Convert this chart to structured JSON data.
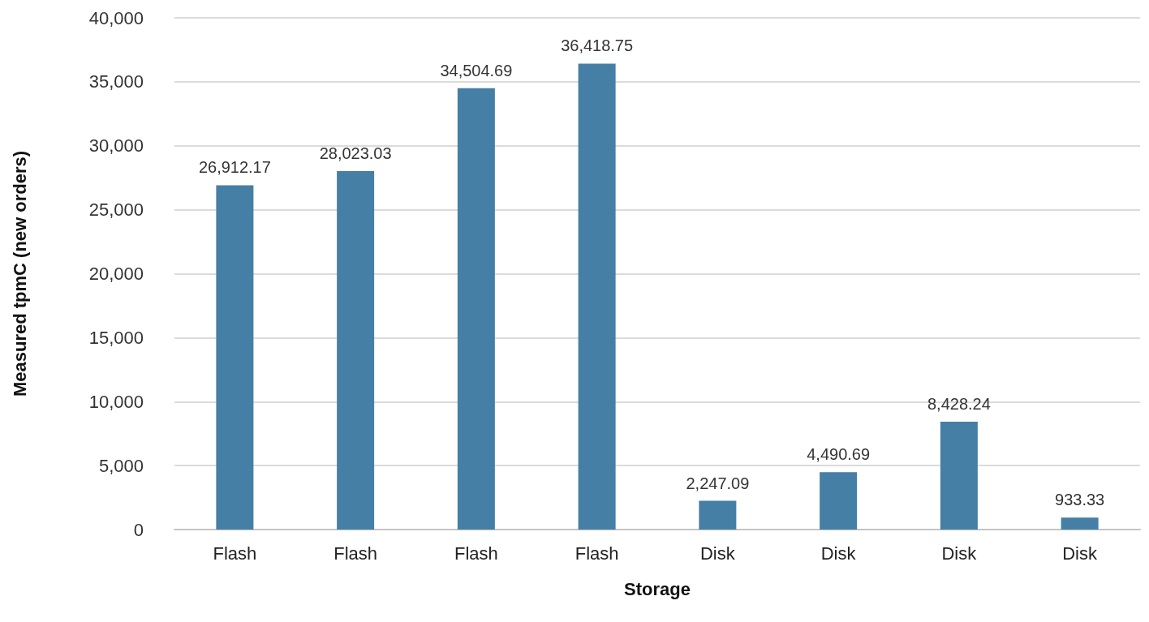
{
  "chart_data": {
    "type": "bar",
    "xlabel": "Storage",
    "ylabel": "Measured tpmC (new orders)",
    "categories": [
      "Flash",
      "Flash",
      "Flash",
      "Flash",
      "Disk",
      "Disk",
      "Disk",
      "Disk"
    ],
    "values": [
      26912.17,
      28023.03,
      34504.69,
      36418.75,
      2247.09,
      4490.69,
      8428.24,
      933.33
    ],
    "value_labels": [
      "26,912.17",
      "28,023.03",
      "34,504.69",
      "36,418.75",
      "2,247.09",
      "4,490.69",
      "8,428.24",
      "933.33"
    ],
    "color": "#457fa6",
    "ylim": [
      0,
      40000
    ],
    "yticks": [
      0,
      {
        "value": 5000,
        "label": "5,000"
      },
      {
        "value": 10000,
        "label": "10,000"
      },
      {
        "value": 15000,
        "label": "15,000"
      },
      {
        "value": 20000,
        "label": "20,000"
      },
      {
        "value": 25000,
        "label": "25,000"
      },
      {
        "value": 30000,
        "label": "30,000"
      },
      {
        "value": 35000,
        "label": "35,000"
      },
      {
        "value": 40000,
        "label": "40,000"
      }
    ],
    "grid": "y"
  }
}
